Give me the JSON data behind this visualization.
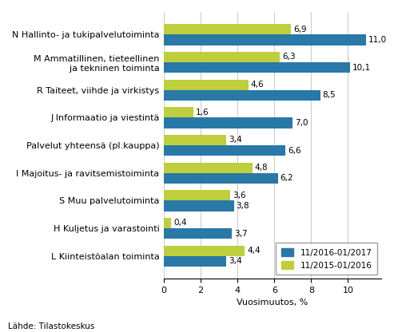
{
  "categories": [
    "N Hallinto- ja tukipalvelutoiminta",
    "M Ammatillinen, tieteellinen\n  ja tekninen toiminta",
    "R Taiteet, viihde ja virkistys",
    "J Informaatio ja viestintä",
    "Palvelut yhteensä (pl.kauppa)",
    "I Majoitus- ja ravitsemistoiminta",
    "S Muu palvelutoiminta",
    "H Kuljetus ja varastointi",
    "L Kiinteistöalan toiminta"
  ],
  "values_blue": [
    11.0,
    10.1,
    8.5,
    7.0,
    6.6,
    6.2,
    3.8,
    3.7,
    3.4
  ],
  "values_green": [
    6.9,
    6.3,
    4.6,
    1.6,
    3.4,
    4.8,
    3.6,
    0.4,
    4.4
  ],
  "labels_blue": [
    "11,0",
    "10,1",
    "8,5",
    "7,0",
    "6,6",
    "6,2",
    "3,8",
    "3,7",
    "3,4"
  ],
  "labels_green": [
    "6,9",
    "6,3",
    "4,6",
    "1,6",
    "3,4",
    "4,8",
    "3,6",
    "0,4",
    "4,4"
  ],
  "color_blue": "#2878A8",
  "color_green": "#BECE3C",
  "xlabel": "Vuosimuutos, %",
  "xlim": [
    0,
    11.8
  ],
  "xticks": [
    0,
    2,
    4,
    6,
    8,
    10
  ],
  "legend_blue": "11/2016-01/2017",
  "legend_green": "11/2015-01/2016",
  "source": "Lähde: Tilastokeskus",
  "bar_height": 0.38,
  "tick_fontsize": 8.0,
  "label_fontsize": 7.5
}
